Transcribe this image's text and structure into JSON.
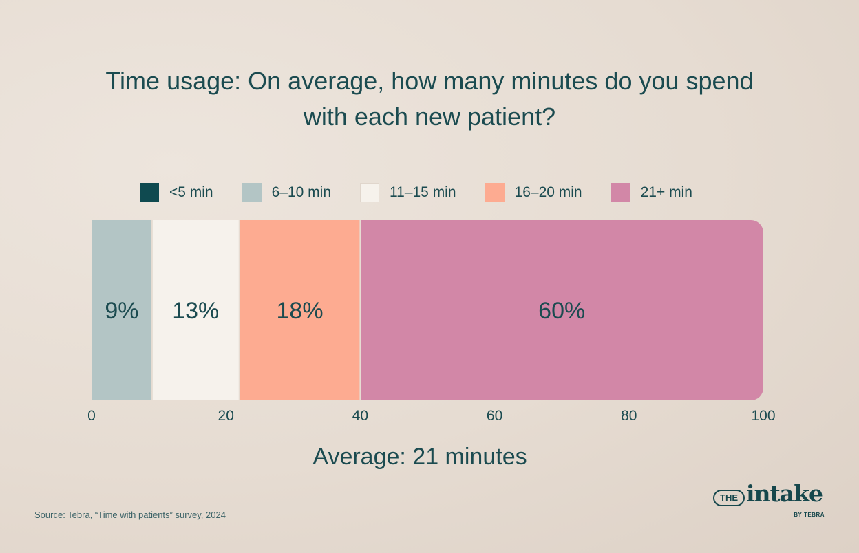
{
  "chart_data": {
    "type": "bar",
    "orientation": "horizontal-stacked",
    "title": "Time usage: On average, how many minutes do you spend with each new patient?",
    "categories": [
      ""
    ],
    "series": [
      {
        "name": "<5 min",
        "values": [
          0
        ],
        "color": "#0f4a50",
        "label": ""
      },
      {
        "name": "6–10 min",
        "values": [
          9
        ],
        "color": "#b3c5c5",
        "label": "9%"
      },
      {
        "name": "11–15 min",
        "values": [
          13
        ],
        "color": "#f6f2ec",
        "label": "13%"
      },
      {
        "name": "16–20 min",
        "values": [
          18
        ],
        "color": "#fdab91",
        "label": "18%"
      },
      {
        "name": "21+ min",
        "values": [
          60
        ],
        "color": "#d287a7",
        "label": "60%"
      }
    ],
    "xlim": [
      0,
      100
    ],
    "xticks": [
      0,
      20,
      40,
      60,
      80,
      100
    ],
    "grid": false,
    "legend": "top"
  },
  "summary": "Average: 21 minutes",
  "source": "Source: Tebra, “Time with patients” survey, 2024",
  "logo": {
    "the": "THE",
    "word": "intake",
    "by": "BY TEBRA"
  },
  "colors": {
    "text": "#1b4b50",
    "background": "#e6dcd2"
  }
}
